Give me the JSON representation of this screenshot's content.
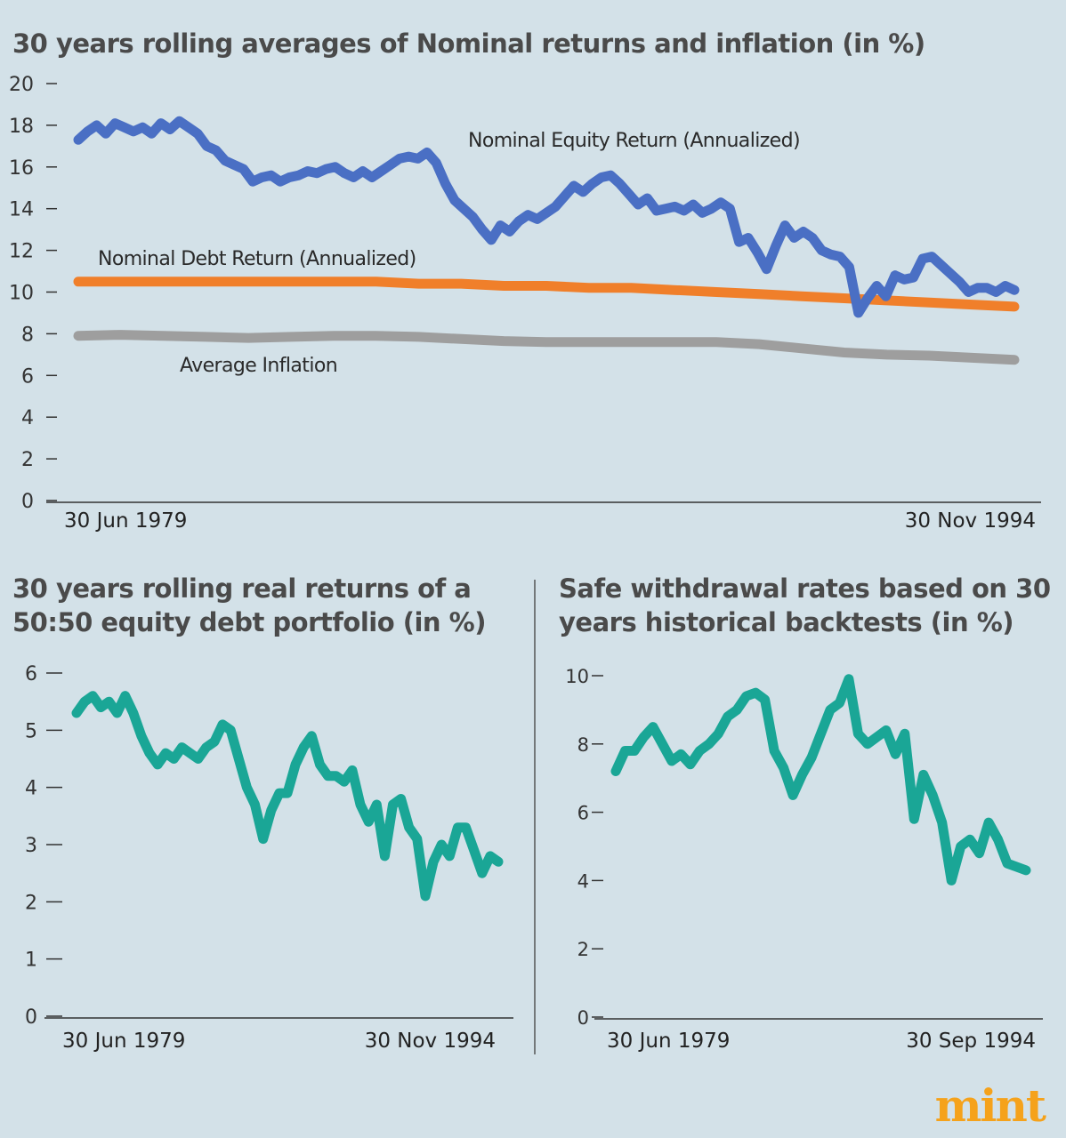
{
  "colors": {
    "background": "#d3e1e8",
    "equity": "#4a6fc4",
    "debt": "#f07f2a",
    "inflation": "#9e9e9e",
    "portfolio": "#1aa696",
    "axis": "#333333",
    "logo": "#f5a21b"
  },
  "logo": "mint",
  "chart_data": [
    {
      "id": "top",
      "type": "line",
      "title": "30 years rolling averages of Nominal returns and inflation (in %)",
      "ylim": [
        0,
        20
      ],
      "yticks": [
        "20",
        "18",
        "16",
        "14",
        "12",
        "10",
        "8",
        "6",
        "4",
        "2",
        "0"
      ],
      "x_start_label": "30 Jun 1979",
      "x_end_label": "30 Nov 1994",
      "series": [
        {
          "name": "Nominal Equity Return (Annualized)",
          "color": "#4a6fc4",
          "values": [
            17.3,
            17.7,
            18.0,
            17.6,
            18.1,
            17.9,
            17.7,
            17.9,
            17.6,
            18.1,
            17.8,
            18.2,
            17.9,
            17.6,
            17.0,
            16.8,
            16.3,
            16.1,
            15.9,
            15.3,
            15.5,
            15.6,
            15.3,
            15.5,
            15.6,
            15.8,
            15.7,
            15.9,
            16.0,
            15.7,
            15.5,
            15.8,
            15.5,
            15.8,
            16.1,
            16.4,
            16.5,
            16.4,
            16.7,
            16.2,
            15.2,
            14.4,
            14.0,
            13.6,
            13.0,
            12.5,
            13.2,
            12.9,
            13.4,
            13.7,
            13.5,
            13.8,
            14.1,
            14.6,
            15.1,
            14.8,
            15.2,
            15.5,
            15.6,
            15.2,
            14.7,
            14.2,
            14.5,
            13.9,
            14.0,
            14.1,
            13.9,
            14.2,
            13.8,
            14.0,
            14.3,
            14.0,
            12.4,
            12.6,
            11.9,
            11.1,
            12.2,
            13.2,
            12.6,
            12.9,
            12.6,
            12.0,
            11.8,
            11.7,
            11.2,
            9.0,
            9.7,
            10.3,
            9.8,
            10.8,
            10.6,
            10.7,
            11.6,
            11.7,
            11.3,
            10.9,
            10.5,
            10.0,
            10.2,
            10.2,
            10.0,
            10.3,
            10.1
          ]
        },
        {
          "name": "Nominal Debt Return (Annualized)",
          "color": "#f07f2a",
          "values": [
            10.5,
            10.5,
            10.5,
            10.5,
            10.5,
            10.5,
            10.5,
            10.5,
            10.4,
            10.4,
            10.3,
            10.3,
            10.2,
            10.2,
            10.1,
            10.0,
            9.9,
            9.8,
            9.7,
            9.6,
            9.5,
            9.4,
            9.3
          ]
        },
        {
          "name": "Average Inflation",
          "color": "#9e9e9e",
          "values": [
            7.9,
            7.95,
            7.9,
            7.85,
            7.8,
            7.85,
            7.9,
            7.9,
            7.85,
            7.75,
            7.65,
            7.6,
            7.6,
            7.6,
            7.6,
            7.6,
            7.5,
            7.3,
            7.1,
            7.0,
            6.95,
            6.85,
            6.75
          ]
        }
      ]
    },
    {
      "id": "bottom-left",
      "type": "line",
      "title": "30 years rolling real returns of a 50:50 equity debt portfolio (in %)",
      "ylim": [
        0,
        6
      ],
      "yticks": [
        "6",
        "5",
        "4",
        "3",
        "2",
        "1",
        "0"
      ],
      "x_start_label": "30 Jun 1979",
      "x_end_label": "30 Nov 1994",
      "series": [
        {
          "name": "Real return 50:50 portfolio",
          "color": "#1aa696",
          "values": [
            5.3,
            5.5,
            5.6,
            5.4,
            5.5,
            5.3,
            5.6,
            5.3,
            4.9,
            4.6,
            4.4,
            4.6,
            4.5,
            4.7,
            4.6,
            4.5,
            4.7,
            4.8,
            5.1,
            5.0,
            4.5,
            4.0,
            3.7,
            3.1,
            3.6,
            3.9,
            3.9,
            4.4,
            4.7,
            4.9,
            4.4,
            4.2,
            4.2,
            4.1,
            4.3,
            3.7,
            3.4,
            3.7,
            2.8,
            3.7,
            3.8,
            3.3,
            3.1,
            2.1,
            2.7,
            3.0,
            2.8,
            3.3,
            3.3,
            2.9,
            2.5,
            2.8,
            2.7
          ]
        }
      ]
    },
    {
      "id": "bottom-right",
      "type": "line",
      "title": "Safe withdrawal rates based on 30 years historical backtests (in %)",
      "ylim": [
        0,
        10
      ],
      "yticks": [
        "10",
        "8",
        "6",
        "4",
        "2",
        "0"
      ],
      "x_start_label": "30 Jun 1979",
      "x_end_label": "30 Sep 1994",
      "series": [
        {
          "name": "Safe withdrawal rate",
          "color": "#1aa696",
          "values": [
            7.2,
            7.8,
            7.8,
            8.2,
            8.5,
            8.0,
            7.5,
            7.7,
            7.4,
            7.8,
            8.0,
            8.3,
            8.8,
            9.0,
            9.4,
            9.5,
            9.3,
            7.8,
            7.3,
            6.5,
            7.1,
            7.6,
            8.3,
            9.0,
            9.2,
            9.9,
            8.3,
            8.0,
            8.2,
            8.4,
            7.7,
            8.3,
            5.8,
            7.1,
            6.5,
            5.7,
            4.0,
            5.0,
            5.2,
            4.8,
            5.7,
            5.2,
            4.5,
            4.4,
            4.3
          ]
        }
      ]
    }
  ]
}
